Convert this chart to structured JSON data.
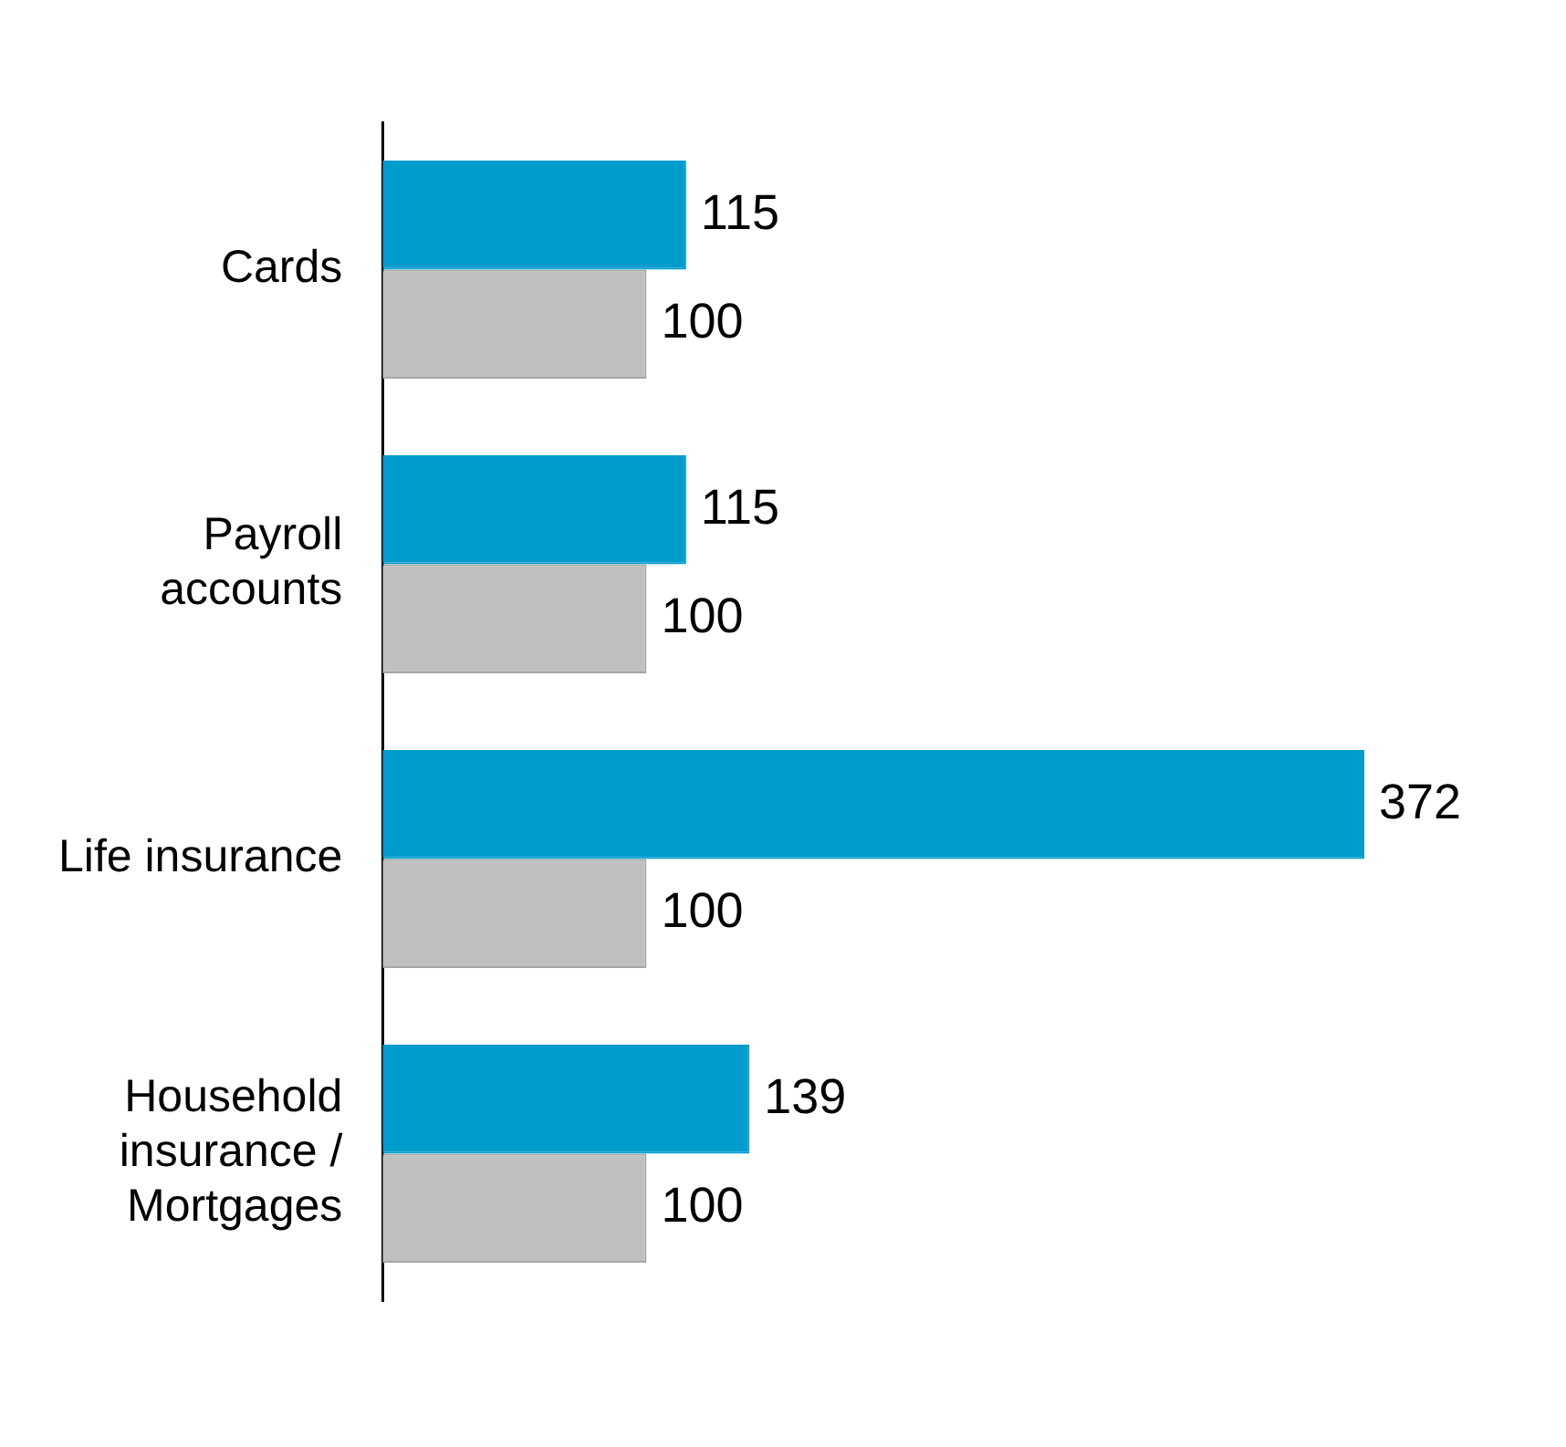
{
  "chart_data": {
    "type": "bar",
    "orientation": "horizontal",
    "categories": [
      "Cards",
      "Payroll\naccounts",
      "Life insurance",
      "Household\ninsurance /\nMortgages"
    ],
    "series": [
      {
        "color": "#009ccd",
        "values": [
          115,
          115,
          372,
          139
        ]
      },
      {
        "color": "#c0c0c0",
        "values": [
          100,
          100,
          100,
          100
        ]
      }
    ],
    "data_labels": true,
    "grid": false,
    "legend": false,
    "tick_labels": "y"
  }
}
